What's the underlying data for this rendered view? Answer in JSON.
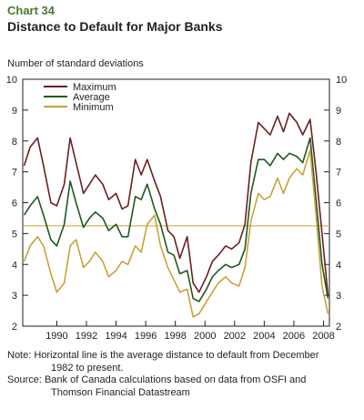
{
  "header": {
    "chart_number": "Chart 34",
    "title": "Distance to Default for Major Banks"
  },
  "notes": {
    "note_line1": "Note: Horizontal line is the average distance to default from December",
    "note_line2": "1982 to present.",
    "source_line1": "Source: Bank of Canada calculations based on data from OSFI and",
    "source_line2": "Thomson Financial Datastream"
  },
  "colors": {
    "maximum": "#6b1f1f",
    "average": "#1e5a1e",
    "minimum": "#c9a23a",
    "reference_line": "#c9a23a",
    "axis": "#231f20"
  },
  "chart_data": {
    "type": "line",
    "title": "Distance to Default for Major Banks",
    "ylabel": "Number of standard deviations",
    "xlabel": "",
    "xlim": [
      1987.7,
      2008.4
    ],
    "ylim": [
      2,
      10
    ],
    "x_ticks": [
      1990,
      1992,
      1994,
      1996,
      1998,
      2000,
      2002,
      2004,
      2006,
      2008
    ],
    "y_ticks": [
      2,
      3,
      4,
      5,
      6,
      7,
      8,
      9,
      10
    ],
    "legend_position": "top-left",
    "reference_line": {
      "y": 5.25
    },
    "series": [
      {
        "name": "Maximum",
        "x": [
          1987.8,
          1988.2,
          1988.7,
          1989.1,
          1989.6,
          1990.0,
          1990.5,
          1990.9,
          1991.3,
          1991.8,
          1992.2,
          1992.6,
          1993.1,
          1993.5,
          1994.0,
          1994.4,
          1994.8,
          1995.3,
          1995.7,
          1996.1,
          1996.6,
          1997.0,
          1997.5,
          1997.9,
          1998.3,
          1998.8,
          1999.2,
          1999.6,
          2000.1,
          2000.5,
          2000.9,
          2001.4,
          2001.8,
          2002.3,
          2002.7,
          2003.1,
          2003.6,
          2004.0,
          2004.4,
          2004.9,
          2005.3,
          2005.7,
          2006.2,
          2006.6,
          2007.1,
          2007.5,
          2007.9,
          2008.3
        ],
        "values": [
          7.2,
          7.8,
          8.1,
          7.2,
          6.0,
          5.9,
          6.6,
          8.1,
          7.3,
          6.3,
          6.6,
          6.9,
          6.6,
          6.1,
          6.3,
          5.8,
          5.9,
          7.4,
          6.9,
          7.4,
          6.7,
          6.2,
          5.1,
          4.9,
          4.2,
          4.9,
          3.4,
          3.1,
          3.6,
          4.1,
          4.3,
          4.6,
          4.5,
          4.7,
          5.3,
          7.3,
          8.6,
          8.4,
          8.2,
          8.8,
          8.3,
          8.9,
          8.6,
          8.2,
          8.7,
          7.0,
          5.0,
          3.0
        ]
      },
      {
        "name": "Average",
        "x": [
          1987.8,
          1988.2,
          1988.7,
          1989.1,
          1989.6,
          1990.0,
          1990.5,
          1990.9,
          1991.3,
          1991.8,
          1992.2,
          1992.6,
          1993.1,
          1993.5,
          1994.0,
          1994.4,
          1994.8,
          1995.3,
          1995.7,
          1996.1,
          1996.6,
          1997.0,
          1997.5,
          1997.9,
          1998.3,
          1998.8,
          1999.2,
          1999.6,
          2000.1,
          2000.5,
          2000.9,
          2001.4,
          2001.8,
          2002.3,
          2002.7,
          2003.1,
          2003.6,
          2004.0,
          2004.4,
          2004.9,
          2005.3,
          2005.7,
          2006.2,
          2006.6,
          2007.1,
          2007.5,
          2007.9,
          2008.3
        ],
        "values": [
          5.6,
          5.9,
          6.2,
          5.6,
          4.8,
          4.6,
          5.3,
          6.7,
          6.0,
          5.2,
          5.5,
          5.7,
          5.5,
          5.1,
          5.3,
          4.9,
          4.9,
          6.2,
          6.1,
          6.6,
          5.8,
          5.3,
          4.4,
          4.3,
          3.7,
          3.8,
          2.9,
          2.8,
          3.2,
          3.6,
          3.8,
          4.0,
          3.9,
          4.0,
          4.5,
          6.3,
          7.4,
          7.4,
          7.2,
          7.6,
          7.4,
          7.6,
          7.5,
          7.3,
          8.1,
          6.1,
          4.0,
          2.9
        ]
      },
      {
        "name": "Minimum",
        "x": [
          1987.8,
          1988.2,
          1988.7,
          1989.1,
          1989.6,
          1990.0,
          1990.5,
          1990.9,
          1991.3,
          1991.8,
          1992.2,
          1992.6,
          1993.1,
          1993.5,
          1994.0,
          1994.4,
          1994.8,
          1995.3,
          1995.7,
          1996.1,
          1996.6,
          1997.0,
          1997.5,
          1997.9,
          1998.3,
          1998.8,
          1999.2,
          1999.6,
          2000.1,
          2000.5,
          2000.9,
          2001.4,
          2001.8,
          2002.3,
          2002.7,
          2003.1,
          2003.6,
          2004.0,
          2004.4,
          2004.9,
          2005.3,
          2005.7,
          2006.2,
          2006.6,
          2007.1,
          2007.5,
          2007.9,
          2008.3
        ],
        "values": [
          4.1,
          4.6,
          4.9,
          4.6,
          3.7,
          3.1,
          3.4,
          4.6,
          4.8,
          3.9,
          4.1,
          4.4,
          4.1,
          3.6,
          3.8,
          4.1,
          4.0,
          4.6,
          4.4,
          5.3,
          5.6,
          4.6,
          3.9,
          3.5,
          3.1,
          3.2,
          2.3,
          2.4,
          2.8,
          3.1,
          3.4,
          3.6,
          3.4,
          3.3,
          3.9,
          5.4,
          6.3,
          6.1,
          6.2,
          6.8,
          6.3,
          6.8,
          7.1,
          6.9,
          7.7,
          5.6,
          3.3,
          2.4
        ]
      }
    ]
  }
}
